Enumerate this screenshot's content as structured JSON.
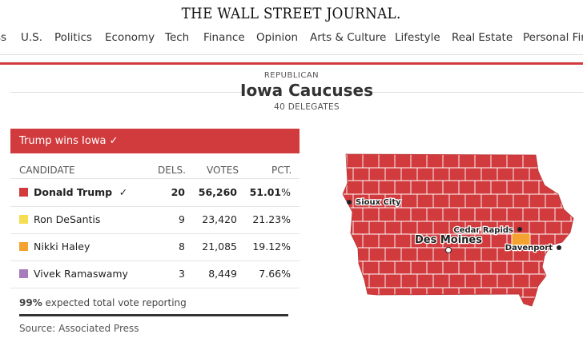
{
  "masthead": {
    "title": "THE WALL STREET JOURNAL."
  },
  "nav": {
    "items": [
      "ss",
      "U.S.",
      "Politics",
      "Economy",
      "Tech",
      "Finance",
      "Opinion",
      "Arts & Culture",
      "Lifestyle",
      "Real Estate",
      "Personal Fin"
    ]
  },
  "header": {
    "party": "REPUBLICAN",
    "title": "Iowa Caucuses",
    "delegates": "40 DELEGATES"
  },
  "results": {
    "winner_banner": "Trump wins Iowa ✓",
    "columns": {
      "candidate": "CANDIDATE",
      "dels": "DELS.",
      "votes": "VOTES",
      "pct": "PCT."
    },
    "candidates": [
      {
        "name": "Donald Trump",
        "check": "✓",
        "dels": "20",
        "votes": "56,260",
        "pct": "51.01",
        "color": "#d23b3e"
      },
      {
        "name": "Ron DeSantis",
        "check": "",
        "dels": "9",
        "votes": "23,420",
        "pct": "21.23",
        "color": "#f5de50"
      },
      {
        "name": "Nikki Haley",
        "check": "",
        "dels": "8",
        "votes": "21,085",
        "pct": "19.12",
        "color": "#f4a331"
      },
      {
        "name": "Vivek Ramaswamy",
        "check": "",
        "dels": "3",
        "votes": "8,449",
        "pct": "7.66",
        "color": "#a77cbd"
      }
    ],
    "pct_suffix": "%",
    "reporting_pct": "99",
    "reporting_text": " expected total vote reporting",
    "source": "Source: Associated Press"
  },
  "map": {
    "cities": [
      "Sioux City",
      "Cedar Rapids",
      "Des Moines",
      "Davenport"
    ],
    "fill_color": "#d23b3e",
    "haley_color": "#f4a331"
  }
}
